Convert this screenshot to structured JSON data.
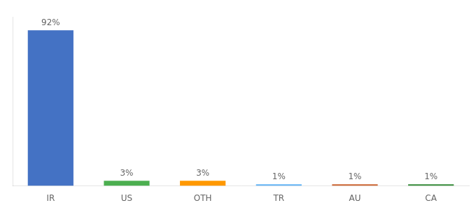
{
  "chart_data": {
    "type": "bar",
    "categories": [
      "IR",
      "US",
      "OTH",
      "TR",
      "AU",
      "CA"
    ],
    "values": [
      92,
      3,
      3,
      1,
      1,
      1
    ],
    "value_labels": [
      "92%",
      "3%",
      "3%",
      "1%",
      "1%",
      "1%"
    ],
    "colors": [
      "#4472C4",
      "#4CAF50",
      "#FF9800",
      "#64B5F6",
      "#CD6633",
      "#388E3C"
    ],
    "ylim": [
      0,
      100
    ],
    "data_labels": true,
    "tick_labels": "x",
    "grid": false
  }
}
